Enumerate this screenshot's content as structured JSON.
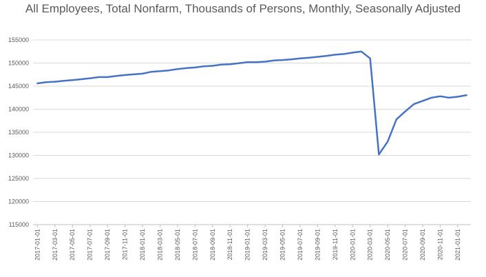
{
  "chart_data": {
    "type": "line",
    "title": "All Employees, Total Nonfarm, Thousands of Persons, Monthly, Seasonally Adjusted",
    "xlabel": "",
    "ylabel": "",
    "ylim": [
      115000,
      155000
    ],
    "yticks": [
      "115000",
      "120000",
      "125000",
      "130000",
      "135000",
      "140000",
      "145000",
      "150000",
      "155000"
    ],
    "grid": true,
    "legend": "none",
    "line_color": "#4472C4",
    "x": [
      "2017-01-01",
      "2017-02-01",
      "2017-03-01",
      "2017-04-01",
      "2017-05-01",
      "2017-06-01",
      "2017-07-01",
      "2017-08-01",
      "2017-09-01",
      "2017-10-01",
      "2017-11-01",
      "2017-12-01",
      "2018-01-01",
      "2018-02-01",
      "2018-03-01",
      "2018-04-01",
      "2018-05-01",
      "2018-06-01",
      "2018-07-01",
      "2018-08-01",
      "2018-09-01",
      "2018-10-01",
      "2018-11-01",
      "2018-12-01",
      "2019-01-01",
      "2019-02-01",
      "2019-03-01",
      "2019-04-01",
      "2019-05-01",
      "2019-06-01",
      "2019-07-01",
      "2019-08-01",
      "2019-09-01",
      "2019-10-01",
      "2019-11-01",
      "2019-12-01",
      "2020-01-01",
      "2020-02-01",
      "2020-03-01",
      "2020-04-01",
      "2020-05-01",
      "2020-06-01",
      "2020-07-01",
      "2020-08-01",
      "2020-09-01",
      "2020-10-01",
      "2020-11-01",
      "2020-12-01",
      "2021-01-01",
      "2021-02-01"
    ],
    "xtick_labels": [
      "2017-01-01",
      "2017-03-01",
      "2017-05-01",
      "2017-07-01",
      "2017-09-01",
      "2017-11-01",
      "2018-01-01",
      "2018-03-01",
      "2018-05-01",
      "2018-07-01",
      "2018-09-01",
      "2018-11-01",
      "2019-01-01",
      "2019-03-01",
      "2019-05-01",
      "2019-07-01",
      "2019-09-01",
      "2019-11-01",
      "2020-01-01",
      "2020-03-01",
      "2020-05-01",
      "2020-07-01",
      "2020-09-01",
      "2020-11-01",
      "2021-01-01"
    ],
    "values": [
      145600,
      145850,
      145950,
      146150,
      146300,
      146500,
      146700,
      146950,
      146950,
      147200,
      147400,
      147550,
      147700,
      148100,
      148250,
      148400,
      148700,
      148900,
      149050,
      149300,
      149400,
      149650,
      149750,
      149950,
      150200,
      150200,
      150300,
      150550,
      150650,
      150800,
      151000,
      151150,
      151350,
      151550,
      151800,
      151950,
      152250,
      152500,
      151000,
      130200,
      133000,
      137800,
      139500,
      141100,
      141800,
      142500,
      142800,
      142500,
      142700,
      143050
    ]
  }
}
